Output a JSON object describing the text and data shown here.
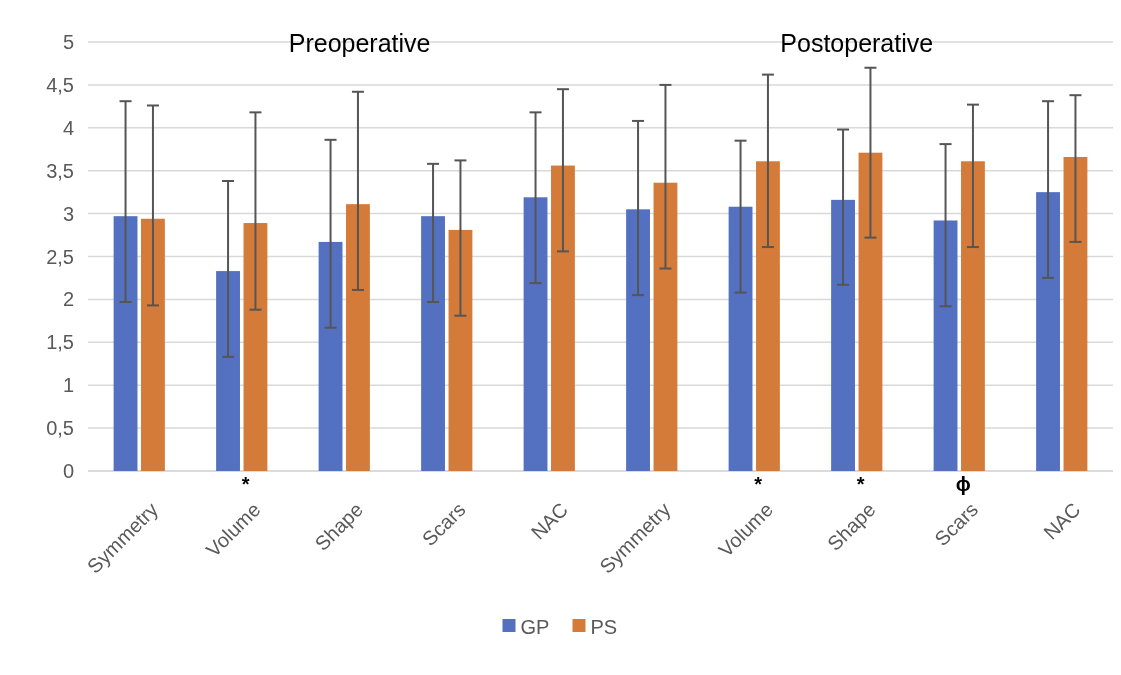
{
  "chart_data": {
    "type": "bar",
    "categories": [
      "Symmetry",
      "Volume",
      "Shape",
      "Scars",
      "NAC",
      "Symmetry",
      "Volume",
      "Shape",
      "Scars",
      "NAC"
    ],
    "series": [
      {
        "name": "GP",
        "color": "#5470c1",
        "values": [
          2.97,
          2.33,
          2.67,
          2.97,
          3.19,
          3.05,
          3.08,
          3.16,
          2.92,
          3.25
        ],
        "errors": [
          [
            1.97,
            4.31
          ],
          [
            1.33,
            3.38
          ],
          [
            1.67,
            3.86
          ],
          [
            1.97,
            3.58
          ],
          [
            2.19,
            4.18
          ],
          [
            2.05,
            4.08
          ],
          [
            2.08,
            3.85
          ],
          [
            2.17,
            3.98
          ],
          [
            1.92,
            3.81
          ],
          [
            2.25,
            4.31
          ]
        ]
      },
      {
        "name": "PS",
        "color": "#d57b3a",
        "values": [
          2.94,
          2.89,
          3.11,
          2.81,
          3.56,
          3.36,
          3.61,
          3.71,
          3.61,
          3.66
        ],
        "errors": [
          [
            1.93,
            4.26
          ],
          [
            1.88,
            4.18
          ],
          [
            2.11,
            4.42
          ],
          [
            1.81,
            3.62
          ],
          [
            2.56,
            4.45
          ],
          [
            2.36,
            4.5
          ],
          [
            2.61,
            4.62
          ],
          [
            2.72,
            4.7
          ],
          [
            2.61,
            4.27
          ],
          [
            2.67,
            4.38
          ]
        ]
      }
    ],
    "ylim": [
      0,
      5
    ],
    "yticks": [
      0,
      {
        "value": 0.5,
        "label": "0,5"
      },
      1,
      {
        "value": 1.5,
        "label": "1,5"
      },
      2,
      {
        "value": 2.5,
        "label": "2,5"
      },
      3,
      {
        "value": 3.5,
        "label": "3,5"
      },
      4,
      {
        "value": 4.5,
        "label": "4,5"
      },
      5
    ],
    "grid": "y",
    "legend": "bottom",
    "annotations": [
      "Preoperative",
      "Postoperative",
      "*",
      "*",
      "*",
      "ϕ"
    ]
  }
}
